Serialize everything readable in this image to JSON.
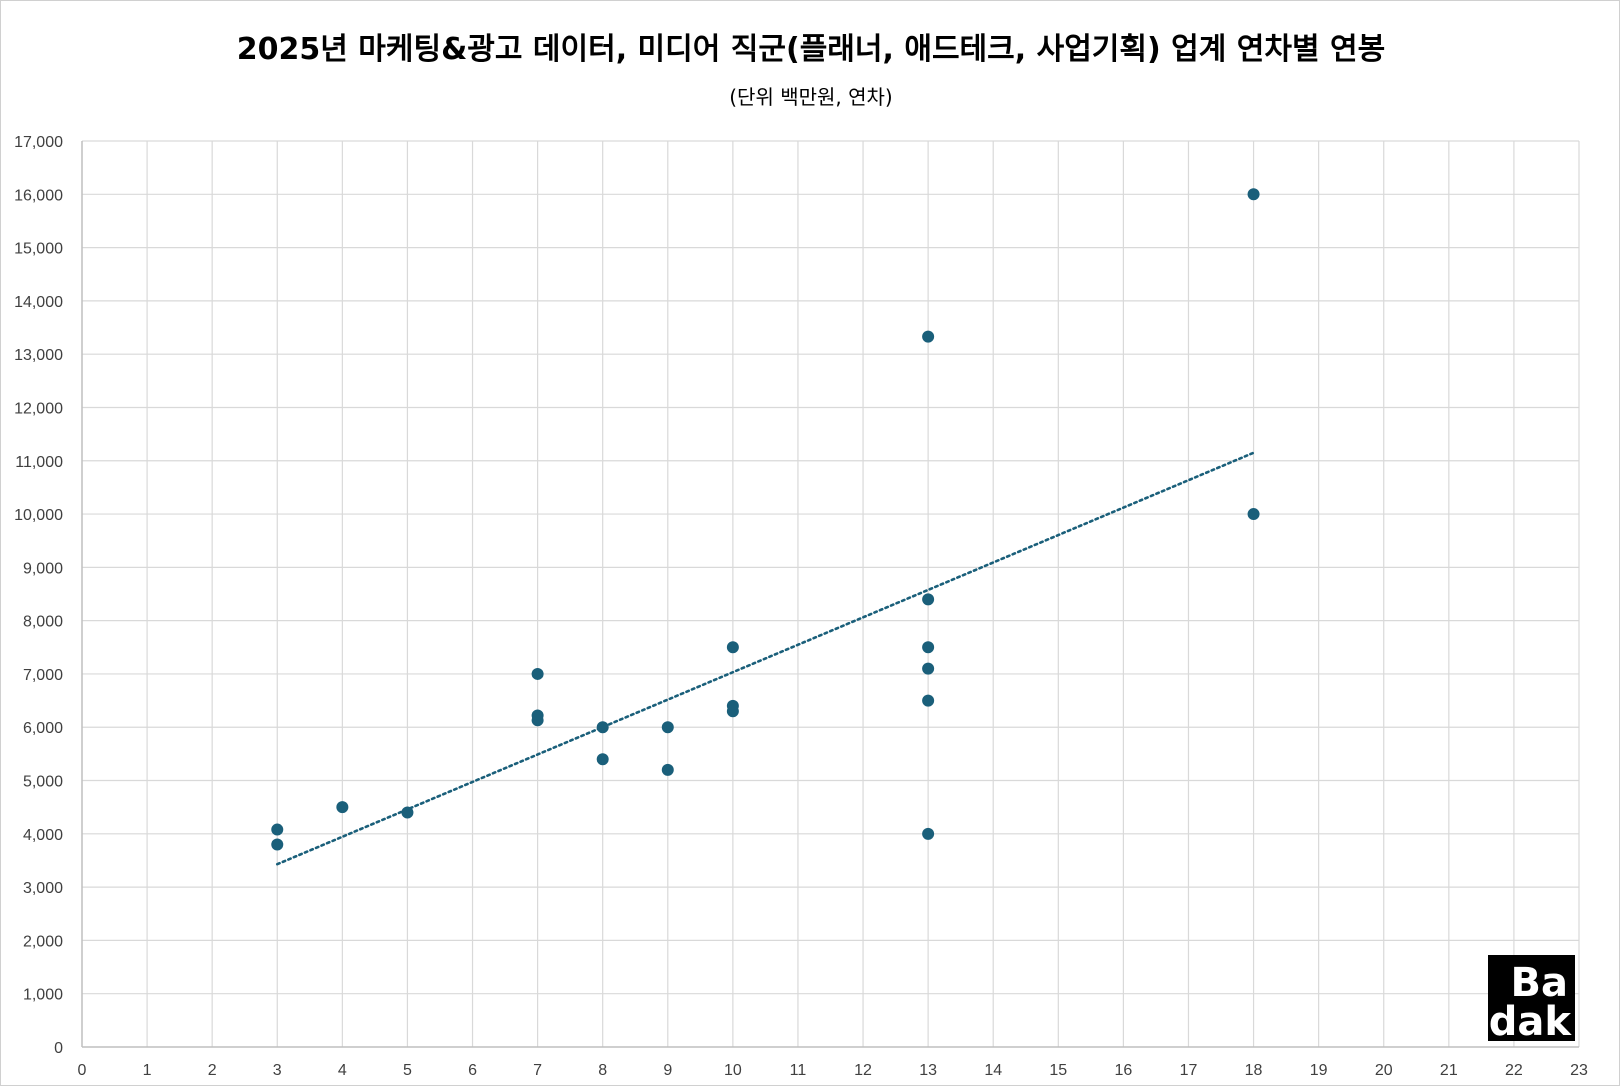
{
  "chart_data": {
    "type": "scatter",
    "title": "2025년 마케팅&광고 데이터, 미디어 직군(플래너, 애드테크, 사업기획) 업계 연차별 연봉",
    "subtitle": "(단위 백만원, 연차)",
    "xlabel": "",
    "ylabel": "",
    "xlim": [
      0,
      23
    ],
    "ylim": [
      0,
      17000
    ],
    "x_ticks": [
      0,
      1,
      2,
      3,
      4,
      5,
      6,
      7,
      8,
      9,
      10,
      11,
      12,
      13,
      14,
      15,
      16,
      17,
      18,
      19,
      20,
      21,
      22,
      23
    ],
    "y_ticks": [
      0,
      1000,
      2000,
      3000,
      4000,
      5000,
      6000,
      7000,
      8000,
      9000,
      10000,
      11000,
      12000,
      13000,
      14000,
      15000,
      16000,
      17000
    ],
    "x_tick_labels": [
      "0",
      "1",
      "2",
      "3",
      "4",
      "5",
      "6",
      "7",
      "8",
      "9",
      "10",
      "11",
      "12",
      "13",
      "14",
      "15",
      "16",
      "17",
      "18",
      "19",
      "20",
      "21",
      "22",
      "23"
    ],
    "y_tick_labels": [
      "0",
      "1,000",
      "2,000",
      "3,000",
      "4,000",
      "5,000",
      "6,000",
      "7,000",
      "8,000",
      "9,000",
      "10,000",
      "11,000",
      "12,000",
      "13,000",
      "14,000",
      "15,000",
      "16,000",
      "17,000"
    ],
    "grid": true,
    "legend": "none",
    "marker_color": "#1a5f7a",
    "trendline": {
      "type": "linear",
      "style": "dotted",
      "color": "#1a5f7a",
      "from": [
        3,
        3430
      ],
      "to": [
        18,
        11150
      ]
    },
    "points": [
      {
        "x": 3,
        "y": 4080
      },
      {
        "x": 3,
        "y": 3800
      },
      {
        "x": 4,
        "y": 4500
      },
      {
        "x": 5,
        "y": 4400
      },
      {
        "x": 7,
        "y": 7000
      },
      {
        "x": 7,
        "y": 6220
      },
      {
        "x": 7,
        "y": 6130
      },
      {
        "x": 8,
        "y": 6000
      },
      {
        "x": 8,
        "y": 5400
      },
      {
        "x": 9,
        "y": 6000
      },
      {
        "x": 9,
        "y": 5200
      },
      {
        "x": 10,
        "y": 7500
      },
      {
        "x": 10,
        "y": 6400
      },
      {
        "x": 10,
        "y": 6300
      },
      {
        "x": 13,
        "y": 13330
      },
      {
        "x": 13,
        "y": 8400
      },
      {
        "x": 13,
        "y": 7500
      },
      {
        "x": 13,
        "y": 7100
      },
      {
        "x": 13,
        "y": 6500
      },
      {
        "x": 13,
        "y": 4000
      },
      {
        "x": 18,
        "y": 16000
      },
      {
        "x": 18,
        "y": 10000
      }
    ]
  },
  "logo": {
    "line1": "Ba",
    "line2": "dak",
    "background": "#000000"
  }
}
